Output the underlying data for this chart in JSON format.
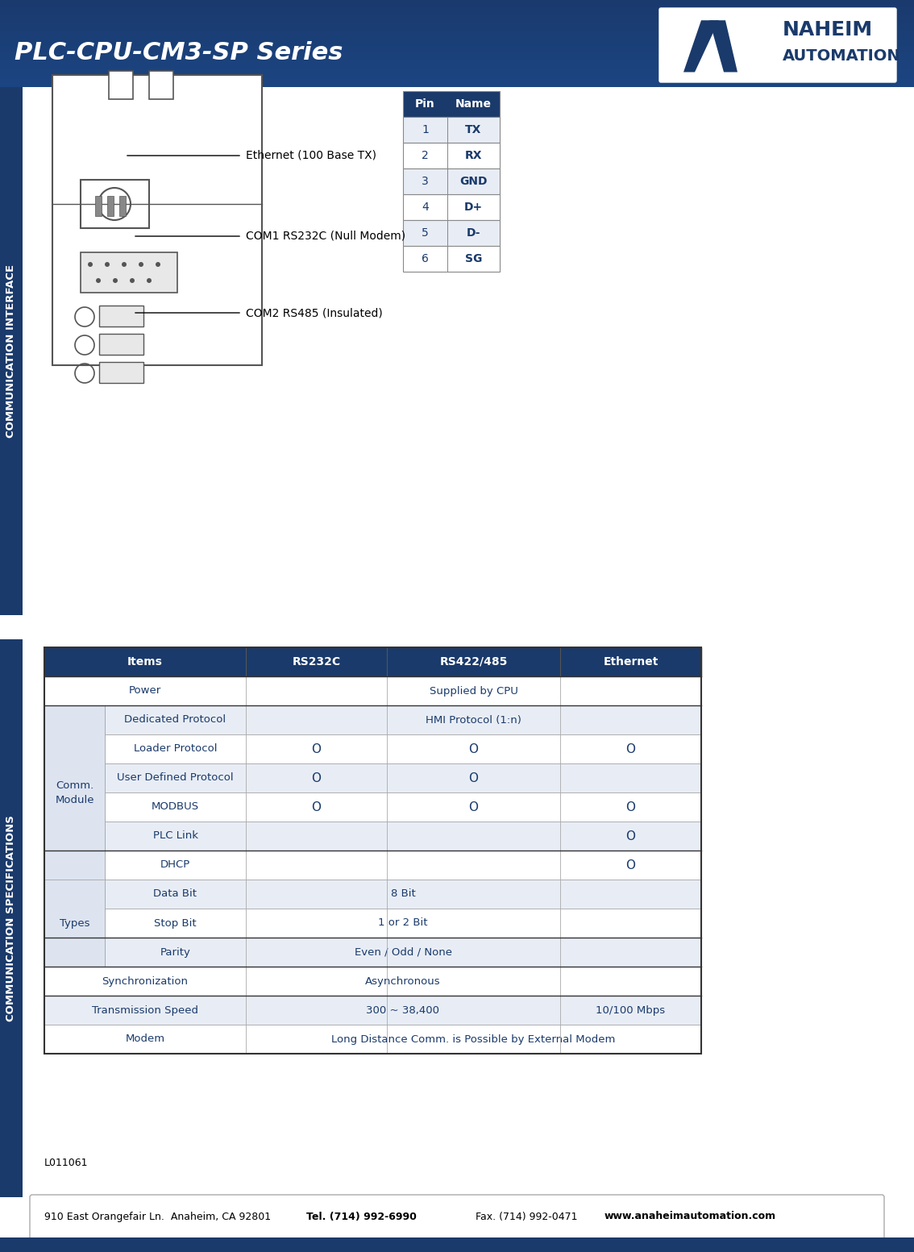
{
  "title": "PLC-CPU-CM3-SP Series",
  "bg_color": "#ffffff",
  "header_bg": "#1a3a6b",
  "header_text_color": "#ffffff",
  "table_header_bg": "#1a3a6b",
  "table_row_bg1": "#ffffff",
  "table_row_bg2": "#e8edf5",
  "table_text_color": "#1a3a6b",
  "side_bar_color": "#1a3a6b",
  "side_bar1_text": "COMMUNICATION INTERFACE",
  "side_bar2_text": "COMMUNICATION SPECIFICATIONS",
  "pin_table_headers": [
    "Pin",
    "Name"
  ],
  "pin_table_data": [
    [
      "1",
      "TX"
    ],
    [
      "2",
      "RX"
    ],
    [
      "3",
      "GND"
    ],
    [
      "4",
      "D+"
    ],
    [
      "5",
      "D-"
    ],
    [
      "6",
      "SG"
    ]
  ],
  "spec_table_headers": [
    "Items",
    "RS232C",
    "RS422/485",
    "Ethernet"
  ],
  "spec_table_data": [
    {
      "row_label": "Power",
      "col1": "",
      "col2": "Supplied by CPU",
      "col3": "",
      "merged": true,
      "merge_cols": [
        1,
        2,
        3
      ]
    },
    {
      "row_label": "Dedicated Protocol",
      "col1": "",
      "col2": "HMI Protocol (1:n)",
      "col3": "",
      "merged": true,
      "merge_cols": [
        1,
        2,
        3
      ],
      "sub": true
    },
    {
      "row_label": "Loader Protocol",
      "col1": "O",
      "col2": "O",
      "col3": "O",
      "merged": false,
      "sub": true
    },
    {
      "row_label": "User Defined Protocol",
      "col1": "O",
      "col2": "O",
      "col3": "",
      "merged": false,
      "sub": true
    },
    {
      "row_label": "MODBUS",
      "col1": "O",
      "col2": "O",
      "col3": "O",
      "merged": false,
      "sub": true
    },
    {
      "row_label": "PLC Link",
      "col1": "",
      "col2": "",
      "col3": "O",
      "merged": false,
      "sub": true
    },
    {
      "row_label": "DHCP",
      "col1": "",
      "col2": "",
      "col3": "O",
      "merged": false,
      "sub": true
    },
    {
      "row_label": "Data Bit",
      "col1": "",
      "col2": "8 Bit",
      "col3": "",
      "merged": true,
      "merge_cols": [
        1,
        2
      ],
      "sub": true,
      "types": true
    },
    {
      "row_label": "Stop Bit",
      "col1": "",
      "col2": "1 or 2 Bit",
      "col3": "",
      "merged": true,
      "merge_cols": [
        1,
        2
      ],
      "sub": true,
      "types": true
    },
    {
      "row_label": "Parity",
      "col1": "",
      "col2": "Even / Odd / None",
      "col3": "",
      "merged": true,
      "merge_cols": [
        1,
        2
      ],
      "sub": true,
      "types": true
    },
    {
      "row_label": "Synchronization",
      "col1": "",
      "col2": "Asynchronous",
      "col3": "",
      "merged": true,
      "merge_cols": [
        1,
        2
      ]
    },
    {
      "row_label": "Transmission Speed",
      "col1": "",
      "col2": "300 ~ 38,400",
      "col3": "10/100 Mbps",
      "merged": false,
      "speed": true
    },
    {
      "row_label": "Modem",
      "col1": "",
      "col2": "Long Distance Comm. is Possible by External Modem",
      "col3": "",
      "merged": true,
      "merge_cols": [
        1,
        2,
        3
      ]
    }
  ],
  "comm_label": "Comm.\nModule",
  "types_label": "Types",
  "footer_text1": "910 East Orangefair Ln.  Anaheim, CA 92801",
  "footer_tel": "Tel. (714) 992-6990",
  "footer_fax": "Fax. (714) 992-0471",
  "footer_web": "www.anaheimautomation.com",
  "doc_number": "L011061",
  "ethernet_labels": [
    "Ethernet (100 Base TX)",
    "COM1 RS232C (Null Modem)",
    "COM2 RS485 (Insulated)"
  ]
}
